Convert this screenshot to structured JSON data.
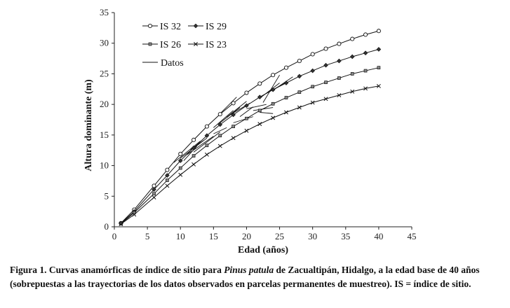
{
  "chart_data": {
    "type": "line",
    "xlabel": "Edad (años)",
    "ylabel": "Altura dominante (m)",
    "xlim": [
      0,
      45
    ],
    "ylim": [
      0,
      35
    ],
    "xticks": [
      0,
      5,
      10,
      15,
      20,
      25,
      30,
      35,
      40,
      45
    ],
    "yticks": [
      0,
      5,
      10,
      15,
      20,
      25,
      30,
      35
    ],
    "x": [
      1,
      3,
      6,
      8,
      10,
      12,
      14,
      16,
      18,
      20,
      22,
      24,
      26,
      28,
      30,
      32,
      34,
      36,
      38,
      40
    ],
    "series": [
      {
        "name": "IS 32",
        "marker": "circle",
        "values": [
          0.6,
          2.8,
          6.7,
          9.3,
          11.9,
          14.2,
          16.4,
          18.4,
          20.2,
          21.9,
          23.4,
          24.8,
          26.0,
          27.1,
          28.2,
          29.1,
          29.9,
          30.7,
          31.4,
          32.0
        ]
      },
      {
        "name": "IS 29",
        "marker": "diamond",
        "values": [
          0.55,
          2.5,
          6.1,
          8.4,
          10.8,
          12.9,
          14.9,
          16.7,
          18.3,
          19.8,
          21.2,
          22.4,
          23.5,
          24.6,
          25.5,
          26.4,
          27.1,
          27.8,
          28.4,
          29.0
        ]
      },
      {
        "name": "IS 26",
        "marker": "square",
        "values": [
          0.5,
          2.3,
          5.4,
          7.6,
          9.6,
          11.6,
          13.3,
          14.9,
          16.4,
          17.7,
          19.0,
          20.1,
          21.1,
          22.0,
          22.9,
          23.6,
          24.3,
          25.0,
          25.5,
          26.0
        ]
      },
      {
        "name": "IS 23",
        "marker": "x",
        "values": [
          0.45,
          2.0,
          4.8,
          6.7,
          8.5,
          10.2,
          11.8,
          13.2,
          14.5,
          15.7,
          16.8,
          17.8,
          18.7,
          19.5,
          20.3,
          20.9,
          21.5,
          22.1,
          22.6,
          23.0
        ]
      }
    ],
    "observed_name": "Datos",
    "observed": [
      [
        [
          9,
          10.5
        ],
        [
          13,
          14
        ]
      ],
      [
        [
          10,
          11.2
        ],
        [
          14,
          14.5
        ]
      ],
      [
        [
          11,
          11.8
        ],
        [
          15,
          14.8
        ]
      ],
      [
        [
          12,
          12.2
        ],
        [
          16,
          15.5
        ]
      ],
      [
        [
          10.5,
          10.8
        ],
        [
          12.5,
          13.2
        ]
      ],
      [
        [
          11.5,
          12.6
        ],
        [
          13.5,
          14.1
        ]
      ],
      [
        [
          15,
          16.2
        ],
        [
          18,
          19.0
        ]
      ],
      [
        [
          16,
          17.0
        ],
        [
          19,
          19.5
        ]
      ],
      [
        [
          17,
          17.9
        ],
        [
          20,
          20.5
        ]
      ],
      [
        [
          18,
          18.6
        ],
        [
          20.5,
          20.2
        ]
      ],
      [
        [
          19,
          18.0
        ],
        [
          21,
          19.6
        ]
      ],
      [
        [
          16,
          18.5
        ],
        [
          18.5,
          21.2
        ]
      ],
      [
        [
          20,
          19.3
        ],
        [
          23,
          20.0
        ]
      ],
      [
        [
          21,
          19.0
        ],
        [
          24,
          19.5
        ]
      ],
      [
        [
          22,
          18.7
        ],
        [
          24,
          18.5
        ]
      ],
      [
        [
          22,
          21.0
        ],
        [
          25,
          23.5
        ]
      ],
      [
        [
          22.5,
          20.3
        ],
        [
          25,
          24.8
        ]
      ],
      [
        [
          23,
          21.8
        ],
        [
          26,
          23.6
        ]
      ],
      [
        [
          24,
          22.3
        ],
        [
          27,
          24.5
        ]
      ],
      [
        [
          15,
          15.2
        ],
        [
          17,
          16.2
        ]
      ],
      [
        [
          18,
          17.0
        ],
        [
          21,
          18.0
        ]
      ]
    ]
  },
  "caption": {
    "fig_label": "Figura 1. Curvas anamórficas de índice de sitio para ",
    "species": "Pinus patula",
    "rest": " de Zacualtipán, Hidalgo, a la edad base de 40 años (sobrepuestas a las trayectorias de los datos observados en parcelas permanentes de muestreo). IS = índice de sitio."
  }
}
